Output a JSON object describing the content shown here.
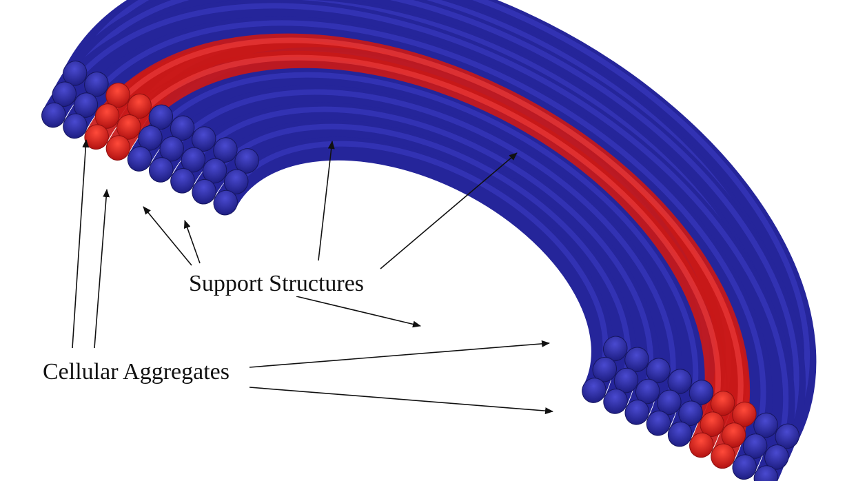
{
  "annotations": [
    {
      "label": "Support Structures"
    },
    {
      "label": "Cellular Aggregates"
    }
  ]
}
